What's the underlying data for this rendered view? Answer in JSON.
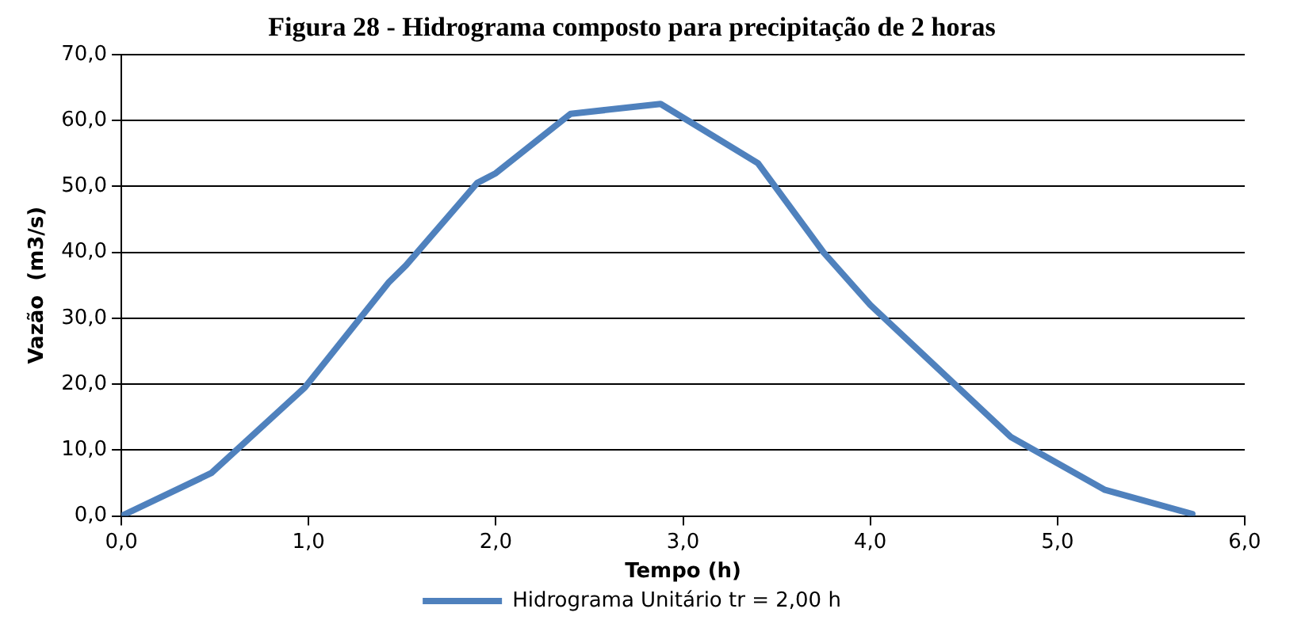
{
  "chart_data": {
    "type": "line",
    "title": "Figura 28 - Hidrograma composto para precipitação de 2 horas",
    "xlabel": "Tempo (h)",
    "ylabel": "Vazão  (m3/s)",
    "series": [
      {
        "name": "Hidrograma Unitário tr = 2,00 h",
        "color": "#4f81bd",
        "x": [
          0,
          0.48,
          0.98,
          1.43,
          1.52,
          1.9,
          2.0,
          2.4,
          2.88,
          3.4,
          3.75,
          4.0,
          4.3,
          4.75,
          5.25,
          5.72
        ],
        "values": [
          0,
          6.5,
          19.5,
          35.5,
          38,
          50.5,
          52,
          61,
          62.5,
          53.5,
          40,
          32,
          24,
          12,
          4,
          0.3
        ]
      }
    ],
    "xlim": [
      0,
      6
    ],
    "xticks": [
      {
        "value": 0,
        "label": "0,0"
      },
      {
        "value": 1,
        "label": "1,0"
      },
      {
        "value": 2,
        "label": "2,0"
      },
      {
        "value": 3,
        "label": "3,0"
      },
      {
        "value": 4,
        "label": "4,0"
      },
      {
        "value": 5,
        "label": "5,0"
      },
      {
        "value": 6,
        "label": "6,0"
      }
    ],
    "ylim": [
      0,
      70
    ],
    "yticks": [
      {
        "value": 0,
        "label": "0,0"
      },
      {
        "value": 10,
        "label": "10,0"
      },
      {
        "value": 20,
        "label": "20,0"
      },
      {
        "value": 30,
        "label": "30,0"
      },
      {
        "value": 40,
        "label": "40,0"
      },
      {
        "value": 50,
        "label": "50,0"
      },
      {
        "value": 60,
        "label": "60,0"
      },
      {
        "value": 70,
        "label": "70,0"
      }
    ],
    "grid": "y",
    "legend": "bottom",
    "marker": "none",
    "line_style": "solid"
  }
}
